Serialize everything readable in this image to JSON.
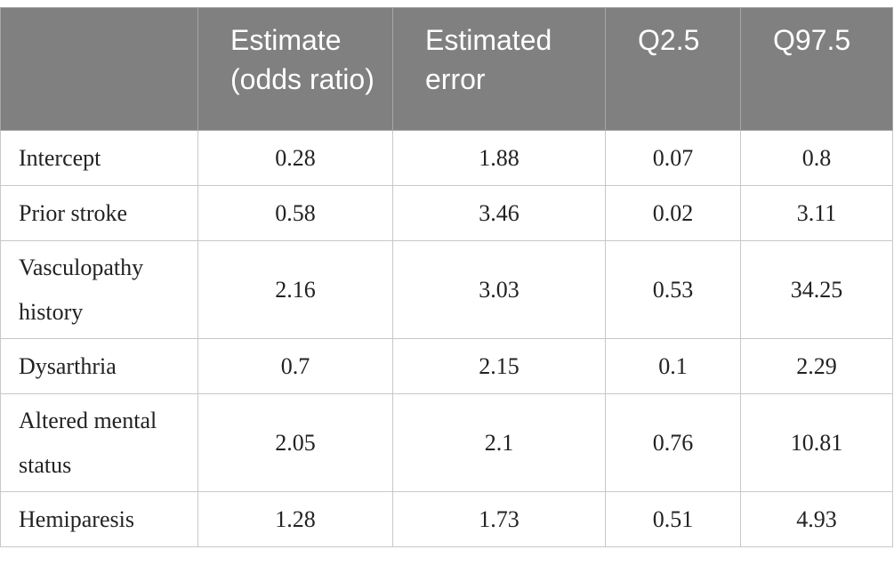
{
  "table": {
    "header": [
      "Estimate (odds ratio)",
      "Estimated error",
      "Q2.5",
      "Q97.5"
    ],
    "rows": [
      [
        "Intercept",
        0.28,
        1.88,
        0.07,
        0.8
      ],
      [
        "Prior stroke",
        0.58,
        3.46,
        0.02,
        3.11
      ],
      [
        "Vasculopathy history",
        2.16,
        3.03,
        0.53,
        34.25
      ],
      [
        "Dysarthria",
        0.7,
        2.15,
        0.1,
        2.29
      ],
      [
        "Altered mental status",
        2.05,
        2.1,
        0.76,
        10.81
      ],
      [
        "Hemiparesis",
        1.28,
        1.73,
        0.51,
        4.93
      ]
    ]
  }
}
